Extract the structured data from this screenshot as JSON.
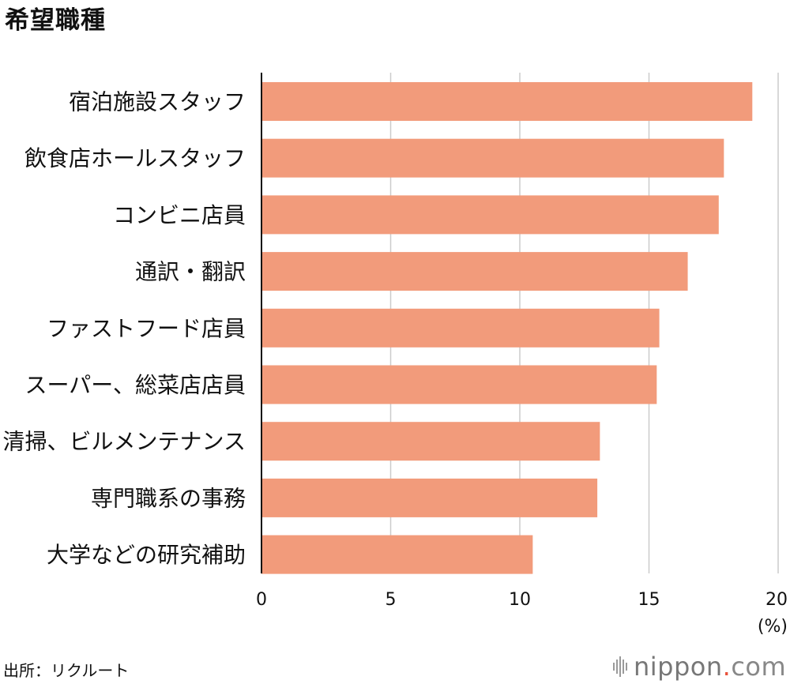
{
  "title": "希望職種",
  "source": "出所：リクルート",
  "logo": {
    "name": "nippon",
    "dot": ".",
    "tld": "com"
  },
  "colors": {
    "bar": "#f29b7b",
    "grid": "#cccccc",
    "axis": "#111111"
  },
  "chart_data": {
    "type": "bar",
    "orientation": "horizontal",
    "title": "希望職種",
    "xlabel": "",
    "unit_label": "(%)",
    "xlim": [
      0,
      20
    ],
    "xticks": [
      0,
      5,
      10,
      15,
      20
    ],
    "grid": true,
    "categories": [
      "宿泊施設スタッフ",
      "飲食店ホールスタッフ",
      "コンビニ店員",
      "通訳・翻訳",
      "ファストフード店員",
      "スーパー、総菜店店員",
      "清掃、ビルメンテナンス",
      "専門職系の事務",
      "大学などの研究補助"
    ],
    "values": [
      19.0,
      17.9,
      17.7,
      16.5,
      15.4,
      15.3,
      13.1,
      13.0,
      10.5
    ]
  }
}
